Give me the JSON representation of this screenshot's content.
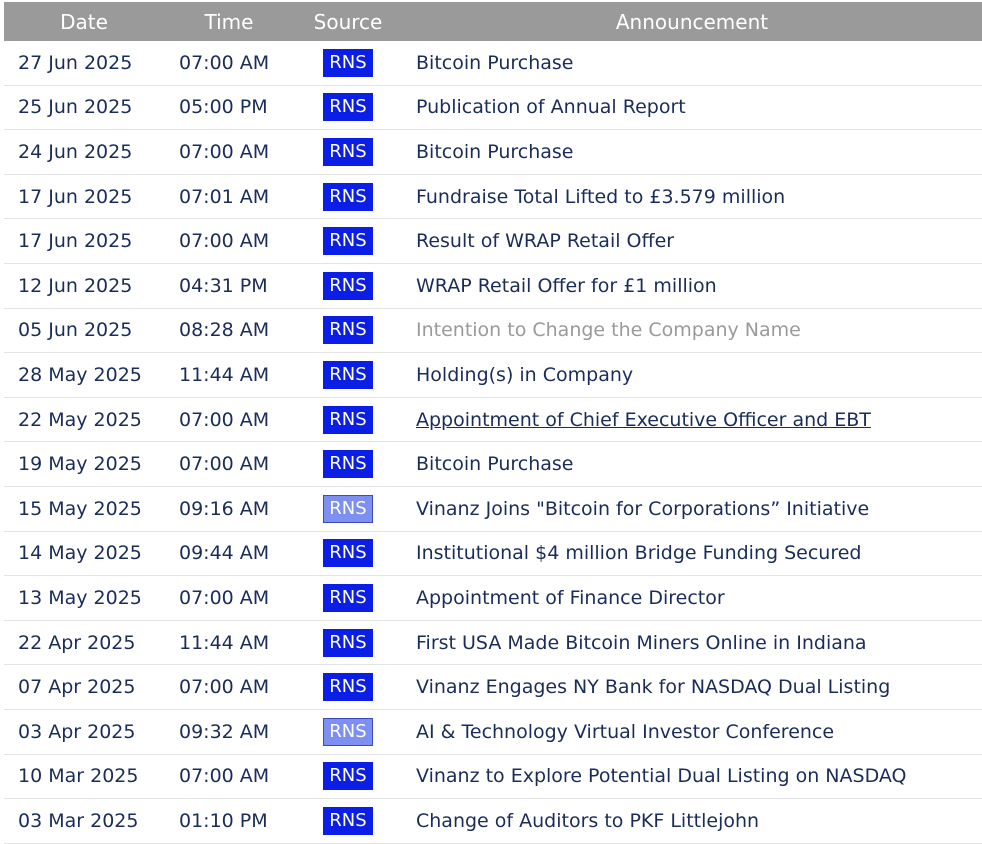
{
  "header": {
    "date": "Date",
    "time": "Time",
    "source": "Source",
    "announcement": "Announcement"
  },
  "rows": [
    {
      "date": "27 Jun 2025",
      "time": "07:00 AM",
      "source": "RNS",
      "announcement": "Bitcoin Purchase",
      "state": "normal",
      "badge": "normal"
    },
    {
      "date": "25 Jun 2025",
      "time": "05:00 PM",
      "source": "RNS",
      "announcement": "Publication of Annual Report",
      "state": "normal",
      "badge": "normal"
    },
    {
      "date": "24 Jun 2025",
      "time": "07:00 AM",
      "source": "RNS",
      "announcement": "Bitcoin Purchase",
      "state": "normal",
      "badge": "normal"
    },
    {
      "date": "17 Jun 2025",
      "time": "07:01 AM",
      "source": "RNS",
      "announcement": "Fundraise Total Lifted to £3.579 million",
      "state": "normal",
      "badge": "normal"
    },
    {
      "date": "17 Jun 2025",
      "time": "07:00 AM",
      "source": "RNS",
      "announcement": "Result of WRAP Retail Offer",
      "state": "normal",
      "badge": "normal"
    },
    {
      "date": "12 Jun 2025",
      "time": "04:31 PM",
      "source": "RNS",
      "announcement": "WRAP Retail Offer for £1 million",
      "state": "normal",
      "badge": "normal"
    },
    {
      "date": "05 Jun 2025",
      "time": "08:28 AM",
      "source": "RNS",
      "announcement": "Intention to Change the Company Name",
      "state": "visited",
      "badge": "normal"
    },
    {
      "date": "28 May 2025",
      "time": "11:44 AM",
      "source": "RNS",
      "announcement": "Holding(s) in Company",
      "state": "normal",
      "badge": "normal"
    },
    {
      "date": "22 May 2025",
      "time": "07:00 AM",
      "source": "RNS",
      "announcement": "Appointment of Chief Executive Officer and EBT",
      "state": "hovered",
      "badge": "normal"
    },
    {
      "date": "19 May 2025",
      "time": "07:00 AM",
      "source": "RNS",
      "announcement": "Bitcoin Purchase",
      "state": "normal",
      "badge": "normal"
    },
    {
      "date": "15 May 2025",
      "time": "09:16 AM",
      "source": "RNS",
      "announcement": "Vinanz Joins \"Bitcoin for Corporations” Initiative",
      "state": "normal",
      "badge": "faded"
    },
    {
      "date": "14 May 2025",
      "time": "09:44 AM",
      "source": "RNS",
      "announcement": "Institutional $4 million Bridge Funding Secured",
      "state": "normal",
      "badge": "normal"
    },
    {
      "date": "13 May 2025",
      "time": "07:00 AM",
      "source": "RNS",
      "announcement": "Appointment of Finance Director",
      "state": "normal",
      "badge": "normal"
    },
    {
      "date": "22 Apr 2025",
      "time": "11:44 AM",
      "source": "RNS",
      "announcement": "First USA Made Bitcoin Miners Online in Indiana",
      "state": "normal",
      "badge": "normal"
    },
    {
      "date": "07 Apr 2025",
      "time": "07:00 AM",
      "source": "RNS",
      "announcement": "Vinanz Engages NY Bank for NASDAQ Dual Listing",
      "state": "normal",
      "badge": "normal"
    },
    {
      "date": "03 Apr 2025",
      "time": "09:32 AM",
      "source": "RNS",
      "announcement": "AI & Technology Virtual Investor Conference",
      "state": "normal",
      "badge": "faded"
    },
    {
      "date": "10 Mar 2025",
      "time": "07:00 AM",
      "source": "RNS",
      "announcement": "Vinanz to Explore Potential Dual Listing on NASDAQ",
      "state": "normal",
      "badge": "normal"
    },
    {
      "date": "03 Mar 2025",
      "time": "01:10 PM",
      "source": "RNS",
      "announcement": "Change of Auditors to PKF Littlejohn",
      "state": "normal",
      "badge": "normal"
    }
  ]
}
